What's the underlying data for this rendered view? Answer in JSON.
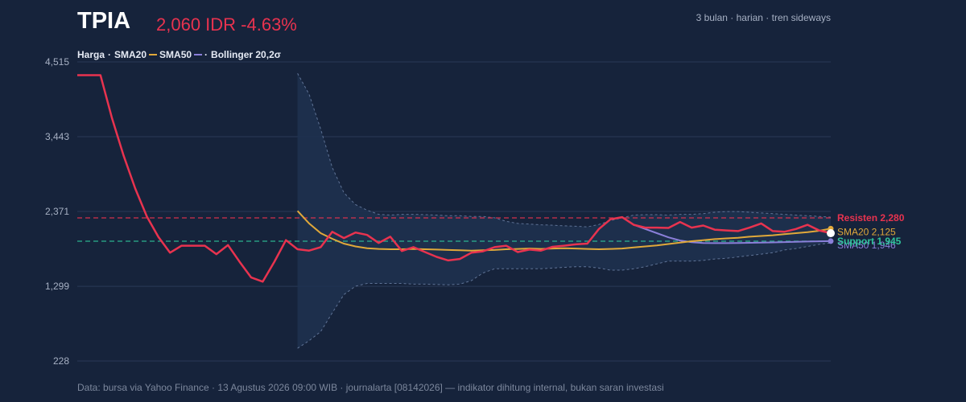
{
  "header": {
    "ticker": "TPIA",
    "price_change": "2,060 IDR -4.63%",
    "meta": "3 bulan · harian · tren sideways"
  },
  "legend": {
    "harga": "Harga",
    "sep1": "·",
    "sma20": "SMA20",
    "sma50": "SMA50",
    "sep2": "·",
    "bollinger": "Bollinger 20,2σ"
  },
  "footer": "Data: bursa via Yahoo Finance · 13 Agustus 2026 09:00 WIB · journalarta [08142026] — indikator dihitung internal, bukan saran investasi",
  "colors": {
    "background": "#16233b",
    "price": "#e8334f",
    "sma20": "#e0a83a",
    "sma50": "#8a7fd9",
    "resistance": "#e8334f",
    "support": "#2fc29a",
    "band_fill": "#1f3150",
    "band_edge": "#5f7396",
    "grid": "#2a3a57"
  },
  "chart_data": {
    "type": "line",
    "x": [
      1,
      2,
      3,
      4,
      5,
      6,
      7,
      8,
      9,
      10,
      11,
      12,
      13,
      14,
      15,
      16,
      17,
      18,
      19,
      20,
      21,
      22,
      23,
      24,
      25,
      26,
      27,
      28,
      29,
      30,
      31,
      32,
      33,
      34,
      35,
      36,
      37,
      38,
      39,
      40,
      41,
      42,
      43,
      44,
      45,
      46,
      47,
      48,
      49,
      50,
      51,
      52,
      53,
      54,
      55,
      56,
      57,
      58,
      59,
      60,
      61,
      62,
      63,
      64,
      65,
      66
    ],
    "ylim": [
      228,
      4515
    ],
    "yticks": [
      {
        "value": 4515,
        "label": "4,515"
      },
      {
        "value": 3443,
        "label": "3,443"
      },
      {
        "value": 2371,
        "label": "2,371"
      },
      {
        "value": 1299,
        "label": "1,299"
      },
      {
        "value": 228,
        "label": "228"
      }
    ],
    "grid": true,
    "series": [
      {
        "name": "Harga",
        "values": [
          4325,
          4325,
          4325,
          3705,
          3170,
          2700,
          2300,
          2005,
          1780,
          1880,
          1880,
          1880,
          1760,
          1890,
          1650,
          1425,
          1365,
          1650,
          1960,
          1830,
          1810,
          1860,
          2080,
          1990,
          2070,
          2035,
          1920,
          2010,
          1805,
          1860,
          1790,
          1720,
          1670,
          1690,
          1780,
          1800,
          1860,
          1880,
          1790,
          1825,
          1810,
          1865,
          1880,
          1900,
          1910,
          2120,
          2260,
          2290,
          2180,
          2140,
          2140,
          2135,
          2220,
          2140,
          2170,
          2110,
          2100,
          2090,
          2140,
          2200,
          2090,
          2080,
          2120,
          2180,
          2100,
          2060
        ]
      },
      {
        "name": "SMA20",
        "values": [
          null,
          null,
          null,
          null,
          null,
          null,
          null,
          null,
          null,
          null,
          null,
          null,
          null,
          null,
          null,
          null,
          null,
          null,
          null,
          2380,
          2200,
          2060,
          1980,
          1910,
          1870,
          1845,
          1835,
          1830,
          1830,
          1835,
          1830,
          1825,
          1820,
          1815,
          1810,
          1815,
          1820,
          1830,
          1835,
          1840,
          1835,
          1840,
          1845,
          1840,
          1835,
          1830,
          1835,
          1840,
          1855,
          1870,
          1885,
          1905,
          1925,
          1945,
          1960,
          1975,
          1985,
          1995,
          2010,
          2020,
          2030,
          2045,
          2060,
          2075,
          2095,
          2125
        ]
      },
      {
        "name": "SMA50",
        "values": [
          null,
          null,
          null,
          null,
          null,
          null,
          null,
          null,
          null,
          null,
          null,
          null,
          null,
          null,
          null,
          null,
          null,
          null,
          null,
          null,
          null,
          null,
          null,
          null,
          null,
          null,
          null,
          null,
          null,
          null,
          null,
          null,
          null,
          null,
          null,
          null,
          null,
          null,
          null,
          null,
          null,
          null,
          null,
          null,
          null,
          null,
          null,
          null,
          2180,
          2120,
          2060,
          2000,
          1955,
          1930,
          1920,
          1918,
          1918,
          1920,
          1922,
          1925,
          1928,
          1932,
          1936,
          1940,
          1944,
          1946
        ]
      },
      {
        "name": "Bollinger upper",
        "values": [
          null,
          null,
          null,
          null,
          null,
          null,
          null,
          null,
          null,
          null,
          null,
          null,
          null,
          null,
          null,
          null,
          null,
          null,
          null,
          4350,
          4050,
          3550,
          3000,
          2640,
          2470,
          2390,
          2330,
          2320,
          2330,
          2330,
          2325,
          2320,
          2310,
          2310,
          2300,
          2300,
          2280,
          2230,
          2200,
          2190,
          2180,
          2175,
          2165,
          2160,
          2150,
          2185,
          2240,
          2280,
          2320,
          2325,
          2325,
          2320,
          2330,
          2330,
          2340,
          2360,
          2370,
          2370,
          2360,
          2350,
          2340,
          2330,
          2320,
          2310,
          2300,
          2290
        ]
      },
      {
        "name": "Bollinger lower",
        "values": [
          null,
          null,
          null,
          null,
          null,
          null,
          null,
          null,
          null,
          null,
          null,
          null,
          null,
          null,
          null,
          null,
          null,
          null,
          null,
          410,
          520,
          650,
          920,
          1180,
          1300,
          1340,
          1340,
          1340,
          1340,
          1330,
          1330,
          1325,
          1320,
          1330,
          1380,
          1490,
          1550,
          1550,
          1550,
          1550,
          1550,
          1560,
          1570,
          1580,
          1580,
          1560,
          1530,
          1530,
          1550,
          1580,
          1620,
          1660,
          1660,
          1660,
          1670,
          1690,
          1700,
          1720,
          1740,
          1760,
          1780,
          1820,
          1840,
          1870,
          1900,
          1920
        ]
      }
    ],
    "levels": [
      {
        "name": "Resisten",
        "value": 2280,
        "label": "Resisten 2,280"
      },
      {
        "name": "Support",
        "value": 1945,
        "label": "Support 1,945"
      }
    ],
    "end_labels": [
      {
        "series": "SMA20",
        "value": 2125,
        "label": "SMA20 2,125"
      },
      {
        "series": "SMA50",
        "value": 1946,
        "label": "SMA50 1,946"
      }
    ],
    "last_price": 2060
  }
}
